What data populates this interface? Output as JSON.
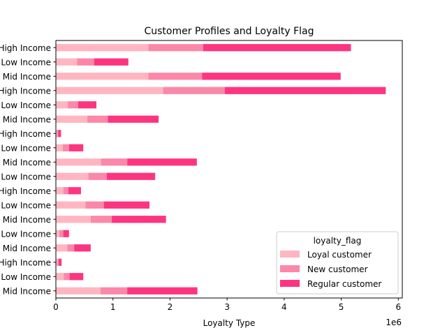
{
  "chart_data": {
    "type": "bar",
    "orientation": "horizontal",
    "stacked": true,
    "title": "Customer Profiles and Loyalty Flag",
    "xlabel": "Loyalty Type",
    "ylabel": "",
    "x_offset_label": "1e6",
    "x_scale": 1000000,
    "xlim": [
      0,
      6.07
    ],
    "xticks": [
      "0",
      "1",
      "2",
      "3",
      "4",
      "5",
      "6"
    ],
    "grid": false,
    "categories": [
      "Mid Income",
      "Low Income",
      "High Income",
      "Mid Income",
      "Low Income",
      "Mid Income",
      "Low Income",
      "High Income",
      "Low Income",
      "Mid Income",
      "Low Income",
      "High Income",
      "Mid Income",
      "Low Income",
      "High Income",
      "Mid Income",
      "Low Income",
      "High Income"
    ],
    "series": [
      {
        "name": "Loyal customer",
        "color": "#ffb6c1",
        "values": [
          0.78,
          0.14,
          0.03,
          0.2,
          0.06,
          0.61,
          0.52,
          0.13,
          0.57,
          0.79,
          0.12,
          0.02,
          0.55,
          0.21,
          1.88,
          1.62,
          0.37,
          1.62
        ]
      },
      {
        "name": "New customer",
        "color": "#fb88a9",
        "values": [
          0.47,
          0.1,
          0.02,
          0.12,
          0.07,
          0.37,
          0.32,
          0.09,
          0.32,
          0.46,
          0.11,
          0.02,
          0.36,
          0.18,
          1.08,
          0.94,
          0.3,
          0.96
        ]
      },
      {
        "name": "Regular customer",
        "color": "#fd3581",
        "values": [
          1.23,
          0.24,
          0.05,
          0.29,
          0.1,
          0.95,
          0.8,
          0.22,
          0.85,
          1.22,
          0.25,
          0.05,
          0.89,
          0.32,
          2.82,
          2.43,
          0.6,
          2.59
        ]
      }
    ],
    "legend": {
      "title": "loyalty_flag",
      "placement": "lower-right"
    }
  }
}
